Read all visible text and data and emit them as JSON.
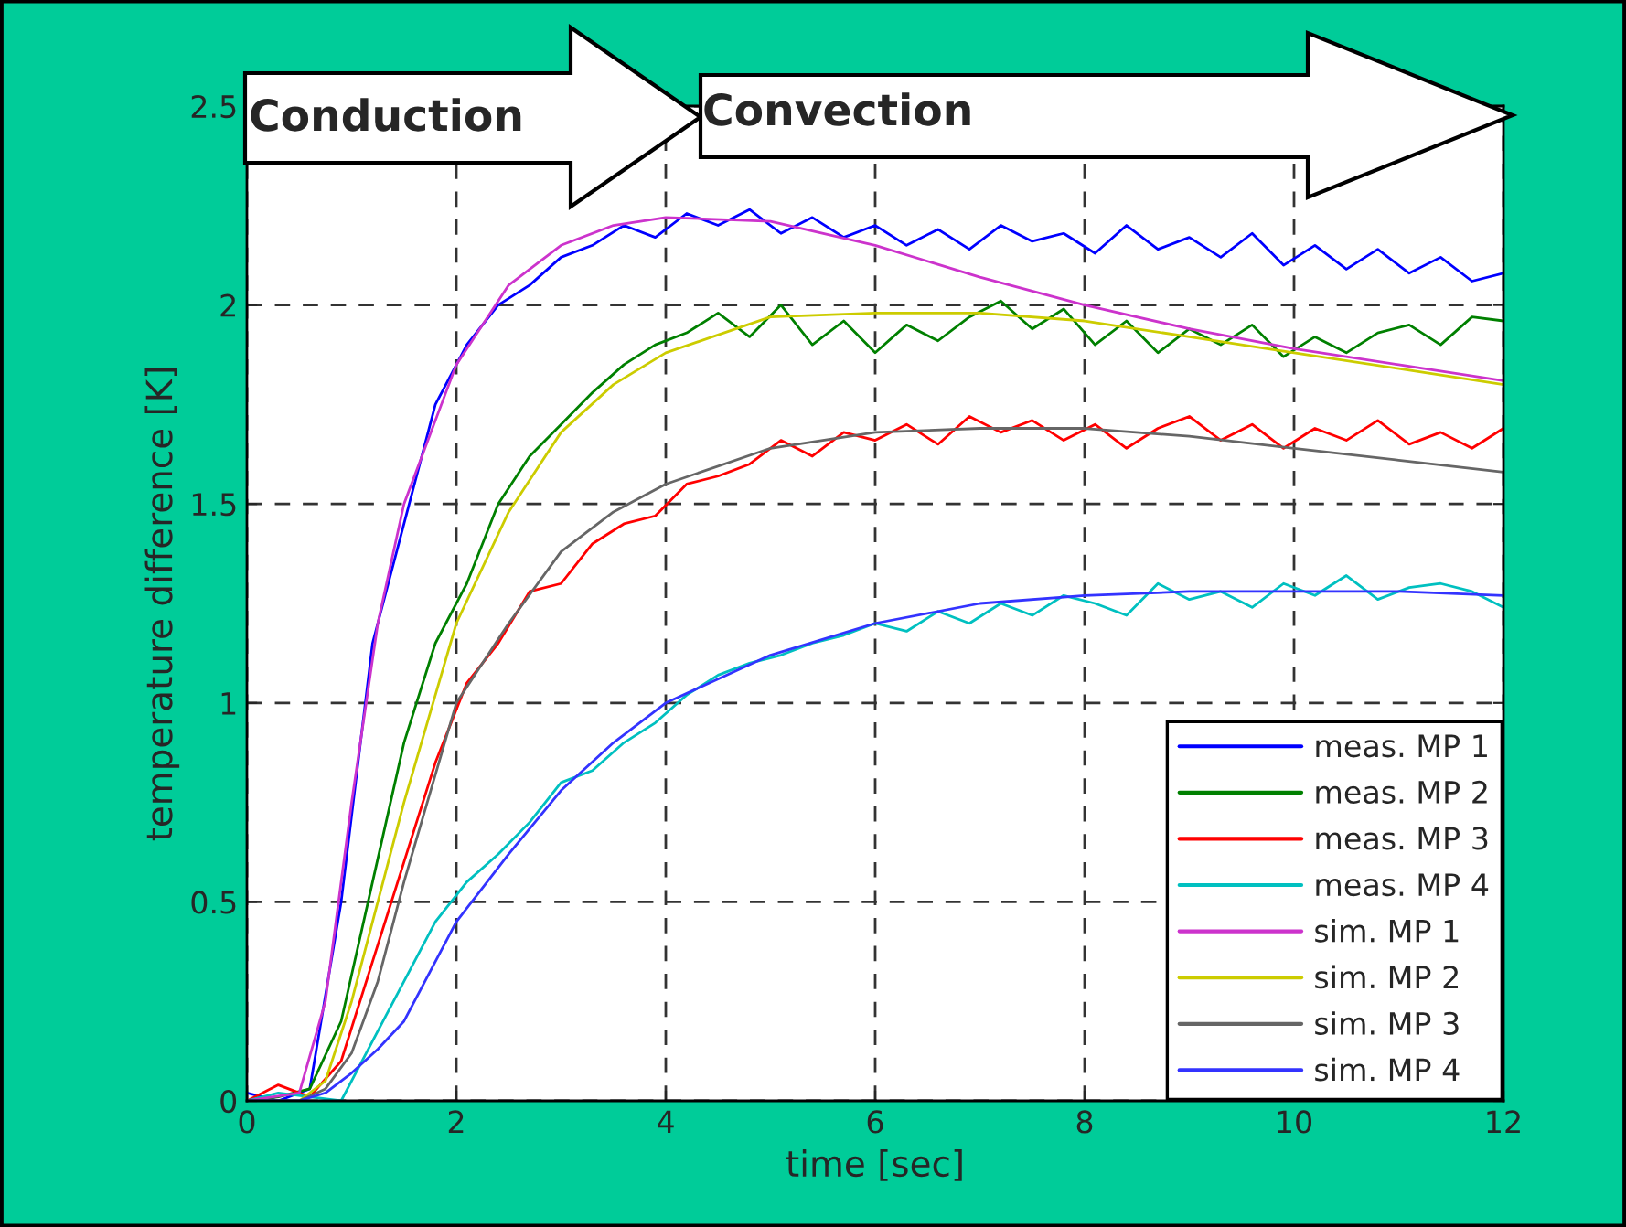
{
  "chart_data": {
    "type": "line",
    "xlabel": "time [sec]",
    "ylabel": "temperature difference [K]",
    "annotations": [
      "Conduction",
      "Convection"
    ],
    "xlim": [
      0,
      12
    ],
    "xticks": [
      0,
      2,
      4,
      6,
      8,
      10,
      12
    ],
    "ylim": [
      0,
      2.5
    ],
    "yticks": [
      0,
      0.5,
      1,
      1.5,
      2,
      2.5
    ],
    "grid": true,
    "legend": "bottom right",
    "line_style": "solid",
    "series": [
      {
        "name": "meas. MP 1",
        "color": "#0000ff",
        "x": [
          0,
          0.3,
          0.6,
          0.9,
          1.2,
          1.5,
          1.8,
          2.1,
          2.4,
          2.7,
          3.0,
          3.3,
          3.6,
          3.9,
          4.2,
          4.5,
          4.8,
          5.1,
          5.4,
          5.7,
          6.0,
          6.3,
          6.6,
          6.9,
          7.2,
          7.5,
          7.8,
          8.1,
          8.4,
          8.7,
          9.0,
          9.3,
          9.6,
          9.9,
          10.2,
          10.5,
          10.8,
          11.1,
          11.4,
          11.7,
          12
        ],
        "values": [
          0.02,
          0.0,
          0.03,
          0.5,
          1.15,
          1.45,
          1.75,
          1.9,
          2.0,
          2.05,
          2.12,
          2.15,
          2.2,
          2.17,
          2.23,
          2.2,
          2.24,
          2.18,
          2.22,
          2.17,
          2.2,
          2.15,
          2.19,
          2.14,
          2.2,
          2.16,
          2.18,
          2.13,
          2.2,
          2.14,
          2.17,
          2.12,
          2.18,
          2.1,
          2.15,
          2.09,
          2.14,
          2.08,
          2.12,
          2.06,
          2.08
        ]
      },
      {
        "name": "meas. MP 2",
        "color": "#008000",
        "x": [
          0,
          0.3,
          0.6,
          0.9,
          1.2,
          1.5,
          1.8,
          2.1,
          2.4,
          2.7,
          3.0,
          3.3,
          3.6,
          3.9,
          4.2,
          4.5,
          4.8,
          5.1,
          5.4,
          5.7,
          6.0,
          6.3,
          6.6,
          6.9,
          7.2,
          7.5,
          7.8,
          8.1,
          8.4,
          8.7,
          9.0,
          9.3,
          9.6,
          9.9,
          10.2,
          10.5,
          10.8,
          11.1,
          11.4,
          11.7,
          12
        ],
        "values": [
          0.0,
          0.01,
          0.03,
          0.2,
          0.55,
          0.9,
          1.15,
          1.3,
          1.5,
          1.62,
          1.7,
          1.78,
          1.85,
          1.9,
          1.93,
          1.98,
          1.92,
          2.0,
          1.9,
          1.96,
          1.88,
          1.95,
          1.91,
          1.97,
          2.01,
          1.94,
          1.99,
          1.9,
          1.96,
          1.88,
          1.94,
          1.9,
          1.95,
          1.87,
          1.92,
          1.88,
          1.93,
          1.95,
          1.9,
          1.97,
          1.96
        ]
      },
      {
        "name": "meas. MP 3",
        "color": "#ff0000",
        "x": [
          0,
          0.3,
          0.6,
          0.9,
          1.2,
          1.5,
          1.8,
          2.1,
          2.4,
          2.7,
          3.0,
          3.3,
          3.6,
          3.9,
          4.2,
          4.5,
          4.8,
          5.1,
          5.4,
          5.7,
          6.0,
          6.3,
          6.6,
          6.9,
          7.2,
          7.5,
          7.8,
          8.1,
          8.4,
          8.7,
          9.0,
          9.3,
          9.6,
          9.9,
          10.2,
          10.5,
          10.8,
          11.1,
          11.4,
          11.7,
          12
        ],
        "values": [
          0.0,
          0.04,
          0.01,
          0.1,
          0.35,
          0.6,
          0.85,
          1.05,
          1.15,
          1.28,
          1.3,
          1.4,
          1.45,
          1.47,
          1.55,
          1.57,
          1.6,
          1.66,
          1.62,
          1.68,
          1.66,
          1.7,
          1.65,
          1.72,
          1.68,
          1.71,
          1.66,
          1.7,
          1.64,
          1.69,
          1.72,
          1.66,
          1.7,
          1.64,
          1.69,
          1.66,
          1.71,
          1.65,
          1.68,
          1.64,
          1.69
        ]
      },
      {
        "name": "meas. MP 4",
        "color": "#00c0c0",
        "x": [
          0,
          0.3,
          0.6,
          0.9,
          1.2,
          1.5,
          1.8,
          2.1,
          2.4,
          2.7,
          3.0,
          3.3,
          3.6,
          3.9,
          4.2,
          4.5,
          4.8,
          5.1,
          5.4,
          5.7,
          6.0,
          6.3,
          6.6,
          6.9,
          7.2,
          7.5,
          7.8,
          8.1,
          8.4,
          8.7,
          9.0,
          9.3,
          9.6,
          9.9,
          10.2,
          10.5,
          10.8,
          11.1,
          11.4,
          11.7,
          12
        ],
        "values": [
          0.0,
          0.02,
          0.01,
          0.0,
          0.15,
          0.3,
          0.45,
          0.55,
          0.62,
          0.7,
          0.8,
          0.83,
          0.9,
          0.95,
          1.02,
          1.07,
          1.1,
          1.12,
          1.15,
          1.17,
          1.2,
          1.18,
          1.23,
          1.2,
          1.25,
          1.22,
          1.27,
          1.25,
          1.22,
          1.3,
          1.26,
          1.28,
          1.24,
          1.3,
          1.27,
          1.32,
          1.26,
          1.29,
          1.3,
          1.28,
          1.24
        ]
      },
      {
        "name": "sim. MP 1",
        "color": "#cc33cc",
        "x": [
          0,
          0.5,
          0.75,
          1,
          1.25,
          1.5,
          2,
          2.5,
          3,
          3.5,
          4,
          5,
          6,
          7,
          8,
          9,
          10,
          11,
          12
        ],
        "values": [
          0,
          0.02,
          0.25,
          0.75,
          1.2,
          1.5,
          1.85,
          2.05,
          2.15,
          2.2,
          2.22,
          2.21,
          2.15,
          2.07,
          2.0,
          1.94,
          1.89,
          1.85,
          1.81
        ]
      },
      {
        "name": "sim. MP 2",
        "color": "#cccc00",
        "x": [
          0,
          0.5,
          0.75,
          1,
          1.25,
          1.5,
          2,
          2.5,
          3,
          3.5,
          4,
          5,
          6,
          7,
          8,
          9,
          10,
          11,
          12
        ],
        "values": [
          0,
          0.0,
          0.05,
          0.25,
          0.5,
          0.75,
          1.2,
          1.48,
          1.68,
          1.8,
          1.88,
          1.97,
          1.98,
          1.98,
          1.96,
          1.92,
          1.88,
          1.84,
          1.8
        ]
      },
      {
        "name": "sim. MP 3",
        "color": "#666666",
        "x": [
          0,
          0.5,
          0.75,
          1,
          1.25,
          1.5,
          2,
          2.5,
          3,
          3.5,
          4,
          5,
          6,
          7,
          8,
          9,
          10,
          11,
          12
        ],
        "values": [
          0,
          0,
          0.03,
          0.12,
          0.3,
          0.55,
          1.0,
          1.2,
          1.38,
          1.48,
          1.55,
          1.64,
          1.68,
          1.69,
          1.69,
          1.67,
          1.64,
          1.61,
          1.58
        ]
      },
      {
        "name": "sim. MP 4",
        "color": "#3333ff",
        "x": [
          0,
          0.5,
          0.75,
          1,
          1.25,
          1.5,
          2,
          2.5,
          3,
          3.5,
          4,
          5,
          6,
          7,
          8,
          9,
          10,
          11,
          12
        ],
        "values": [
          0,
          0,
          0.02,
          0.07,
          0.13,
          0.2,
          0.45,
          0.62,
          0.78,
          0.9,
          1.0,
          1.12,
          1.2,
          1.25,
          1.27,
          1.28,
          1.28,
          1.28,
          1.27
        ]
      }
    ]
  }
}
